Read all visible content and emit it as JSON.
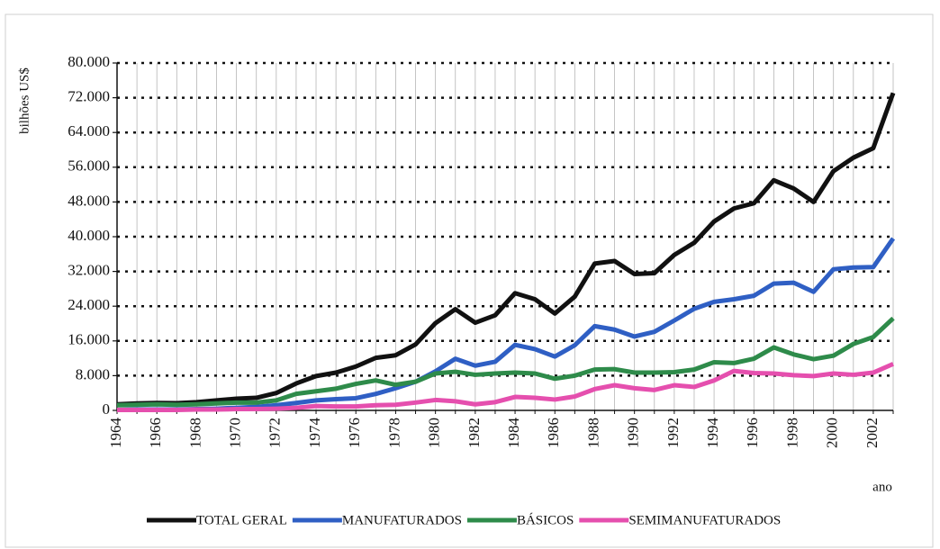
{
  "chart_data": {
    "type": "line",
    "y_label": "bilhões US$",
    "x_label": "ano",
    "categories": [
      "1964",
      null,
      "1966",
      null,
      "1968",
      null,
      "1970",
      null,
      "1972",
      null,
      "1974",
      null,
      "1976",
      null,
      "1978",
      null,
      "1980",
      null,
      "1982",
      null,
      "1984",
      null,
      "1986",
      null,
      "1988",
      null,
      "1990",
      null,
      "1992",
      null,
      "1994",
      null,
      "1996",
      null,
      "1998",
      null,
      "2000",
      null,
      "2002",
      null
    ],
    "series": [
      {
        "name": "TOTAL GERAL",
        "color": "#111111",
        "values": [
          1400,
          1600,
          1700,
          1650,
          1900,
          2300,
          2700,
          2900,
          4000,
          6200,
          7900,
          8700,
          10100,
          12100,
          12700,
          15200,
          20100,
          23300,
          20200,
          21900,
          27000,
          25600,
          22300,
          26200,
          33800,
          34400,
          31400,
          31600,
          35800,
          38600,
          43500,
          46500,
          47700,
          53000,
          51100,
          48000,
          55100,
          58200,
          60400,
          73100
        ]
      },
      {
        "name": "MANUFATURADOS",
        "color": "#2f5fc4",
        "values": [
          100,
          200,
          200,
          200,
          300,
          400,
          600,
          800,
          1200,
          1700,
          2300,
          2600,
          2800,
          3800,
          5100,
          6600,
          9000,
          11900,
          10300,
          11200,
          15100,
          14100,
          12400,
          15000,
          19400,
          18600,
          17000,
          18100,
          20700,
          23400,
          25000,
          25600,
          26400,
          29200,
          29400,
          27300,
          32500,
          32900,
          33000,
          39600
        ]
      },
      {
        "name": "BÁSICOS",
        "color": "#2e8b4a",
        "values": [
          1200,
          1300,
          1400,
          1300,
          1400,
          1600,
          1800,
          1800,
          2300,
          3800,
          4400,
          5000,
          6100,
          6900,
          5900,
          6600,
          8500,
          8900,
          8200,
          8500,
          8700,
          8500,
          7300,
          8000,
          9400,
          9500,
          8700,
          8700,
          8800,
          9400,
          11100,
          10900,
          11900,
          14500,
          12900,
          11800,
          12600,
          15300,
          16900,
          21200
        ]
      },
      {
        "name": "SEMIMANUFATURADOS",
        "color": "#e54fae",
        "values": [
          100,
          100,
          100,
          100,
          200,
          200,
          300,
          300,
          400,
          600,
          1000,
          900,
          900,
          1200,
          1300,
          1800,
          2400,
          2100,
          1400,
          1900,
          3100,
          2900,
          2500,
          3200,
          4900,
          5800,
          5100,
          4700,
          5800,
          5400,
          6900,
          9100,
          8600,
          8500,
          8100,
          7900,
          8500,
          8200,
          8700,
          10700
        ]
      }
    ],
    "ylim": [
      0,
      80000
    ],
    "yticks": [
      0,
      {
        "value": 8000,
        "label": "8.000"
      },
      {
        "value": 16000,
        "label": "16.000"
      },
      {
        "value": 24000,
        "label": "24.000"
      },
      {
        "value": 32000,
        "label": "32.000"
      },
      {
        "value": 40000,
        "label": "40.000"
      },
      {
        "value": 48000,
        "label": "48.000"
      },
      {
        "value": 56000,
        "label": "56.000"
      },
      {
        "value": 64000,
        "label": "64.000"
      },
      {
        "value": 72000,
        "label": "72.000"
      },
      {
        "value": 80000,
        "label": "80.000"
      }
    ],
    "grid": true,
    "legend": "bottom"
  }
}
